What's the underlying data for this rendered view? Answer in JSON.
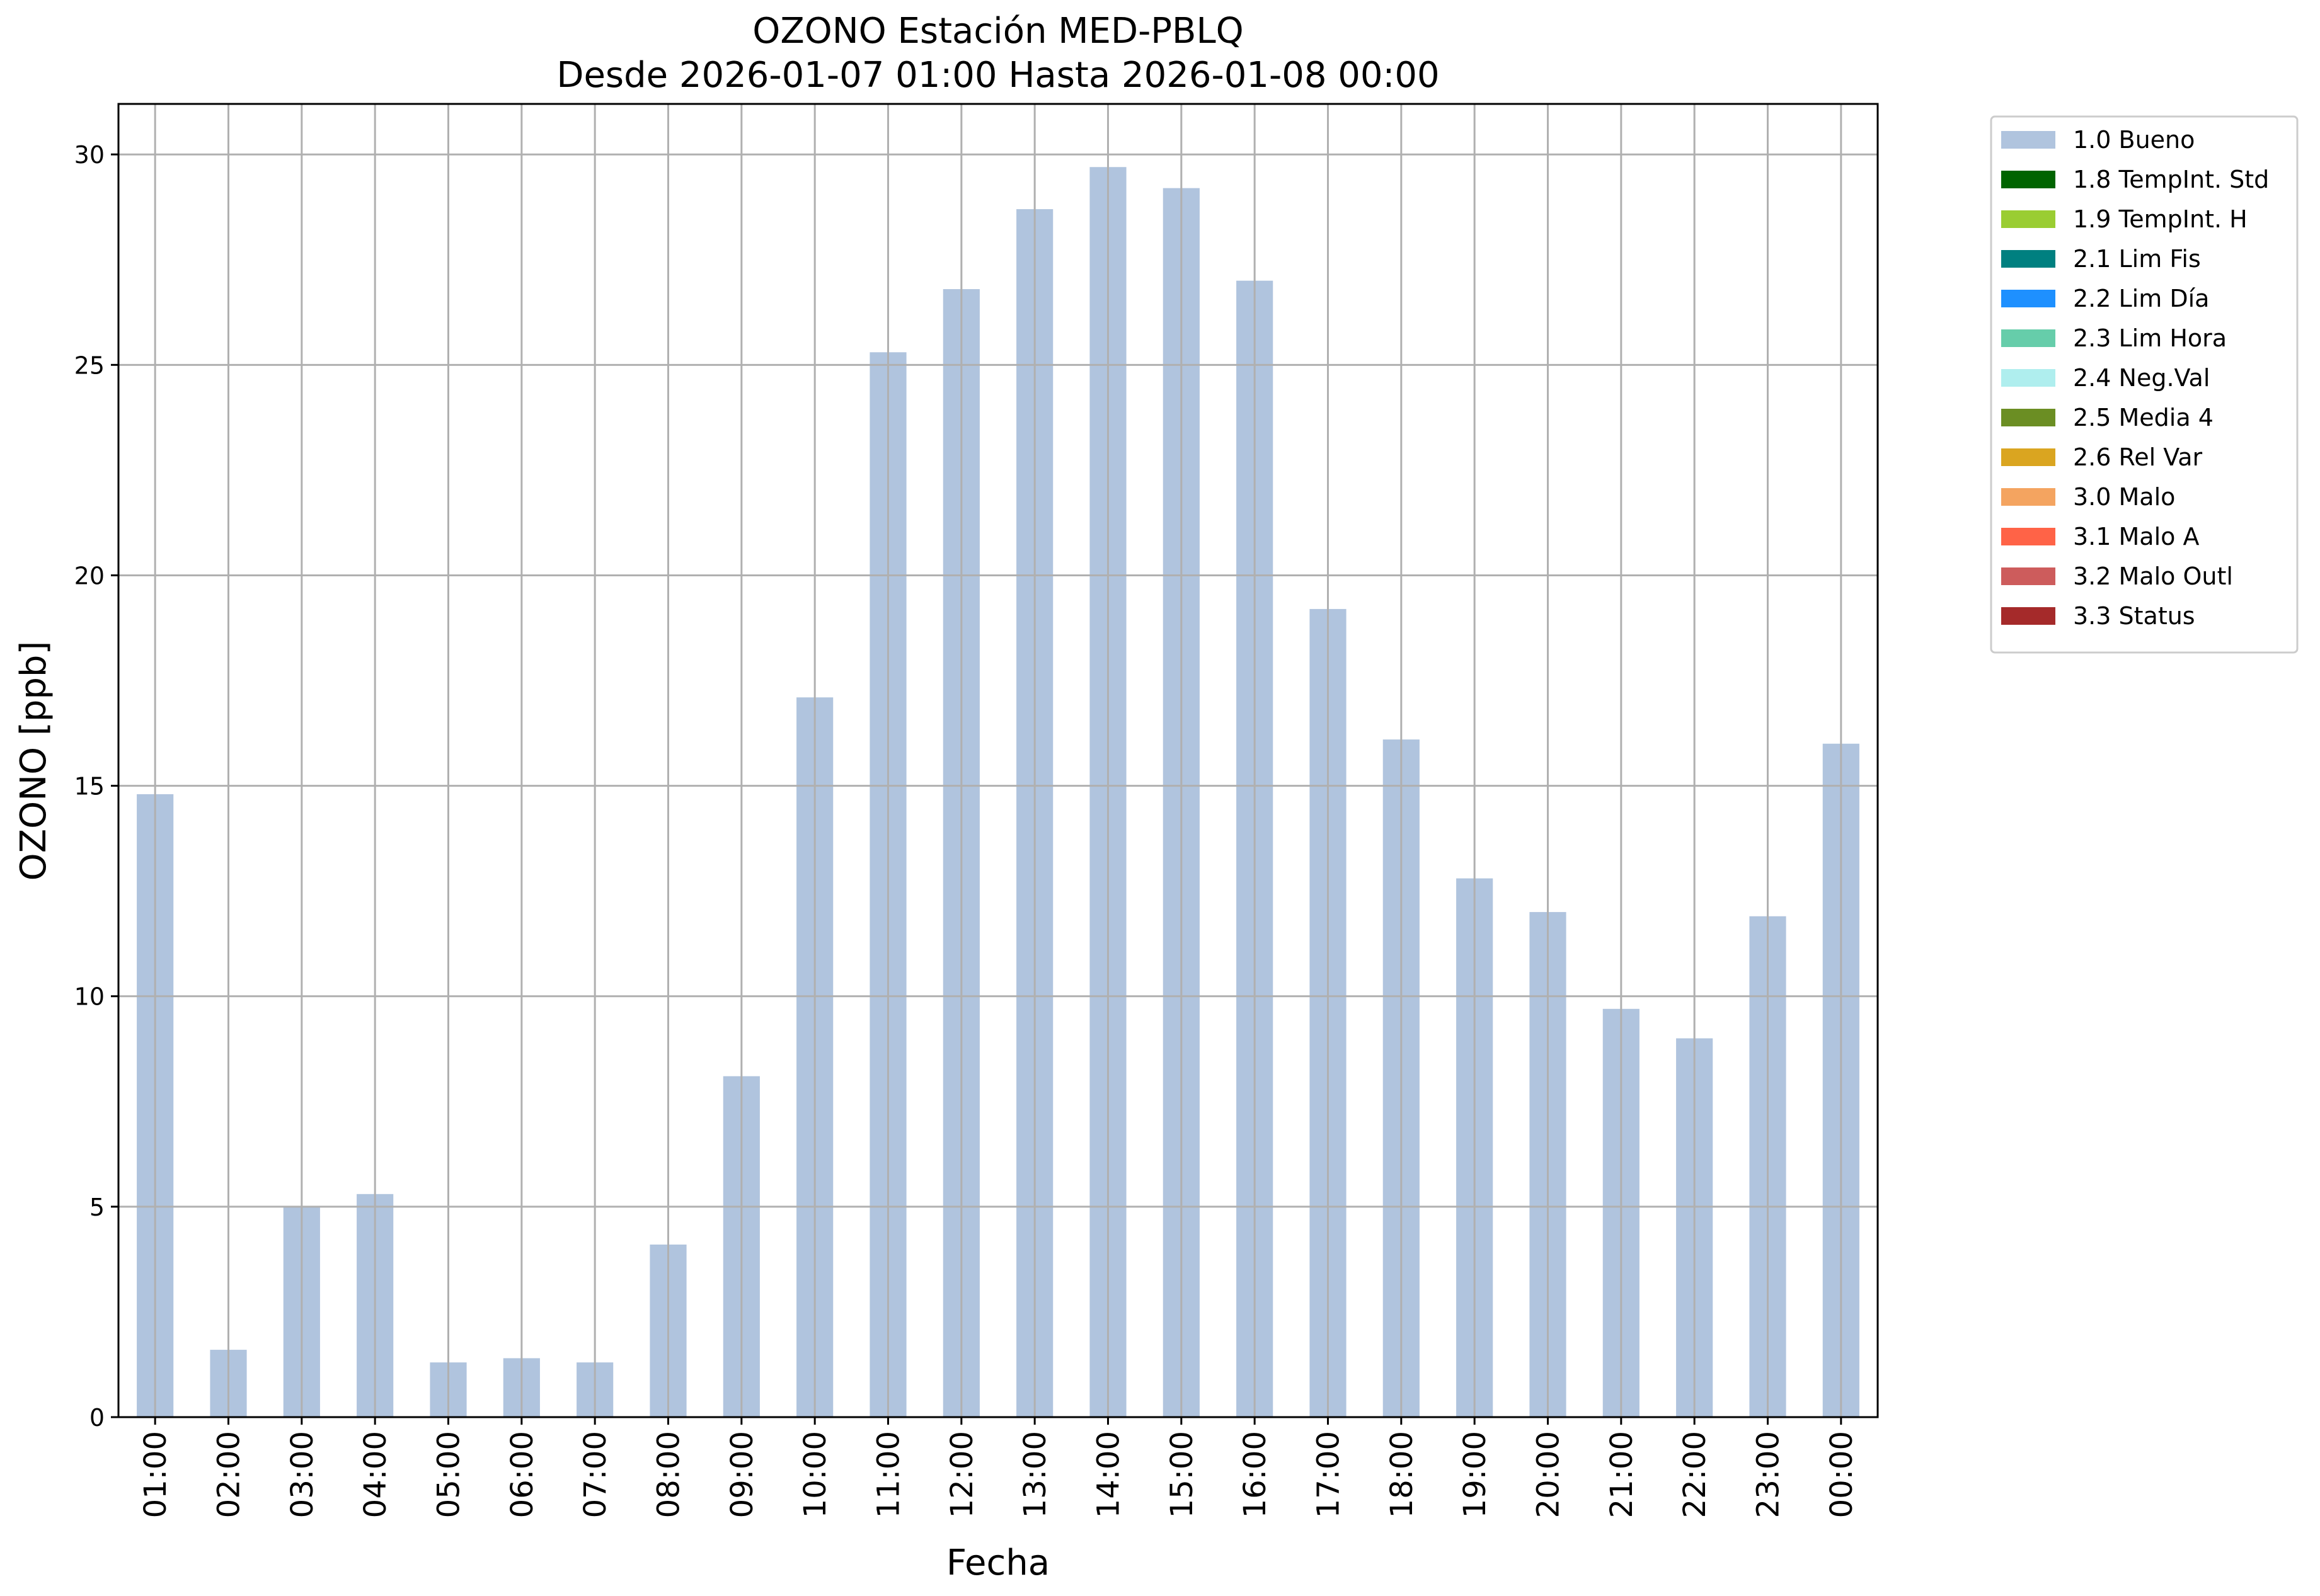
{
  "chart_data": {
    "type": "bar",
    "title": "OZONO Estación MED-PBLQ",
    "subtitle": "Desde 2026-01-07 01:00 Hasta 2026-01-08 00:00",
    "xlabel": "Fecha",
    "ylabel": "OZONO [ppb]",
    "ylim": [
      0,
      31.2
    ],
    "yticks": [
      0,
      5,
      10,
      15,
      20,
      25,
      30
    ],
    "grid": true,
    "legend_position": "outside-top-right",
    "categories": [
      "01:00",
      "02:00",
      "03:00",
      "04:00",
      "05:00",
      "06:00",
      "07:00",
      "08:00",
      "09:00",
      "10:00",
      "11:00",
      "12:00",
      "13:00",
      "14:00",
      "15:00",
      "16:00",
      "17:00",
      "18:00",
      "19:00",
      "20:00",
      "21:00",
      "22:00",
      "23:00",
      "00:00"
    ],
    "series": [
      {
        "name": "1.0 Bueno",
        "color": "#b0c4de",
        "values": [
          14.8,
          1.6,
          5.0,
          5.3,
          1.3,
          1.4,
          1.3,
          4.1,
          8.1,
          17.1,
          25.3,
          26.8,
          28.7,
          29.7,
          29.2,
          27.0,
          19.2,
          16.1,
          12.8,
          12.0,
          9.7,
          9.0,
          11.9,
          16.0
        ]
      }
    ],
    "legend": [
      {
        "label": "1.0 Bueno",
        "color": "#b0c4de"
      },
      {
        "label": "1.8 TempInt. Std",
        "color": "#006400"
      },
      {
        "label": "1.9 TempInt. H",
        "color": "#9acd32"
      },
      {
        "label": "2.1 Lim Fis",
        "color": "#008080"
      },
      {
        "label": "2.2 Lim Día",
        "color": "#1e90ff"
      },
      {
        "label": "2.3 Lim Hora",
        "color": "#66cdaa"
      },
      {
        "label": "2.4 Neg.Val",
        "color": "#afeeee"
      },
      {
        "label": "2.5 Media 4",
        "color": "#6b8e23"
      },
      {
        "label": "2.6 Rel Var",
        "color": "#daa520"
      },
      {
        "label": "3.0 Malo",
        "color": "#f4a460"
      },
      {
        "label": "3.1 Malo A",
        "color": "#ff6347"
      },
      {
        "label": "3.2 Malo Outl",
        "color": "#cd5c5c"
      },
      {
        "label": "3.3 Status",
        "color": "#a52a2a"
      }
    ]
  }
}
